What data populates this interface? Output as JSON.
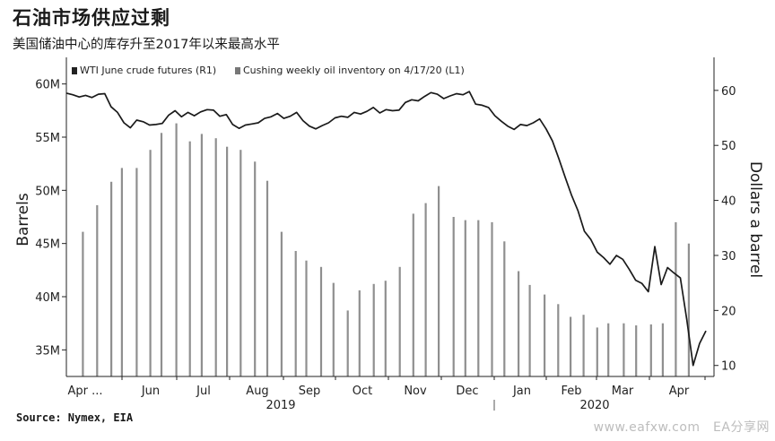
{
  "title": "石油市场供应过剩",
  "subtitle": "美国储油中心的库存升至2017年以来最高水平",
  "source": "Source: Nymex, EIA",
  "watermark": "www.eafxw.com　EA分享网",
  "colors": {
    "bars": "#8f8f8f",
    "line": "#1a1a1a",
    "legend_line": "#222222",
    "legend_bars": "#777777"
  },
  "chart_data": {
    "type": "bar+line",
    "legend": [
      {
        "label": "WTI June crude futures (R1)",
        "series": "wti"
      },
      {
        "label": "Cushing weekly oil inventory on 4/17/20 (L1)",
        "series": "cushing"
      }
    ],
    "legend_position": "top-left",
    "ylabel_left": "Barrels",
    "ylabel_right": "Dollars a barrel",
    "ylim_left": [
      32.5,
      62.5
    ],
    "ylim_right": [
      8,
      66
    ],
    "yticks_left": [
      35,
      40,
      45,
      50,
      55,
      60
    ],
    "yticks_left_labels": [
      "35M",
      "40M",
      "45M",
      "50M",
      "55M",
      "60M"
    ],
    "yticks_right": [
      10,
      20,
      30,
      40,
      50,
      60
    ],
    "yticks_right_labels": [
      "10",
      "20",
      "30",
      "40",
      "50",
      "60"
    ],
    "x_month_labels": [
      "Apr ...",
      "Jun",
      "Jul",
      "Aug",
      "Sep",
      "Oct",
      "Nov",
      "Dec",
      "Jan",
      "Feb",
      "Mar",
      "Apr"
    ],
    "x_year_labels": [
      "2019",
      "2020"
    ],
    "series": [
      {
        "name": "Cushing weekly oil inventory on 4/17/20 (L1)",
        "id": "cushing",
        "kind": "bar",
        "axis": "left",
        "x_fraction": [
          0.012,
          0.035,
          0.058,
          0.075,
          0.099,
          0.121,
          0.139,
          0.163,
          0.185,
          0.204,
          0.227,
          0.245,
          0.267,
          0.29,
          0.31,
          0.333,
          0.356,
          0.373,
          0.397,
          0.417,
          0.44,
          0.459,
          0.482,
          0.501,
          0.524,
          0.546,
          0.566,
          0.587,
          0.611,
          0.63,
          0.651,
          0.673,
          0.693,
          0.716,
          0.734,
          0.758,
          0.78,
          0.8,
          0.821,
          0.843,
          0.861,
          0.886,
          0.906,
          0.93,
          0.949,
          0.97,
          0.991
        ],
        "values": [
          46.1,
          48.6,
          50.8,
          52.1,
          52.1,
          53.8,
          55.4,
          56.3,
          54.6,
          55.3,
          54.9,
          54.1,
          53.8,
          52.7,
          50.9,
          46.1,
          44.3,
          43.4,
          42.8,
          41.3,
          38.7,
          40.6,
          41.2,
          41.5,
          42.8,
          47.8,
          48.8,
          50.4,
          47.5,
          47.2,
          47.2,
          47.0,
          45.2,
          42.4,
          41.1,
          40.2,
          39.3,
          38.1,
          38.3,
          37.1,
          37.5,
          37.5,
          37.3,
          37.4,
          37.5,
          47.0,
          45.0
        ]
      },
      {
        "name": "WTI June crude futures (R1)",
        "id": "wti",
        "kind": "line",
        "axis": "right",
        "x_fraction": [
          0,
          0.01,
          0.02,
          0.03,
          0.04,
          0.05,
          0.06,
          0.07,
          0.08,
          0.09,
          0.1,
          0.11,
          0.12,
          0.13,
          0.14,
          0.15,
          0.16,
          0.17,
          0.18,
          0.19,
          0.2,
          0.21,
          0.22,
          0.23,
          0.24,
          0.25,
          0.26,
          0.27,
          0.28,
          0.29,
          0.3,
          0.31,
          0.32,
          0.33,
          0.34,
          0.35,
          0.36,
          0.37,
          0.38,
          0.39,
          0.4,
          0.41,
          0.42,
          0.43,
          0.44,
          0.45,
          0.46,
          0.47,
          0.48,
          0.49,
          0.5,
          0.51,
          0.52,
          0.53,
          0.54,
          0.55,
          0.56,
          0.57,
          0.58,
          0.59,
          0.6,
          0.61,
          0.62,
          0.63,
          0.64,
          0.65,
          0.66,
          0.67,
          0.68,
          0.69,
          0.7,
          0.71,
          0.72,
          0.73,
          0.74,
          0.75,
          0.76,
          0.77,
          0.78,
          0.79,
          0.8,
          0.81,
          0.82,
          0.83,
          0.84,
          0.85,
          0.86,
          0.87,
          0.88,
          0.89,
          0.9,
          0.91,
          0.92,
          0.93,
          0.94,
          0.95,
          0.96,
          0.97,
          0.98,
          0.99,
          1.0
        ],
        "values": [
          59.5,
          59.2,
          58.8,
          59.1,
          58.7,
          59.3,
          59.4,
          57.0,
          56.0,
          54.1,
          53.2,
          54.6,
          54.3,
          53.7,
          53.8,
          54.0,
          55.5,
          56.3,
          55.2,
          56.0,
          55.4,
          56.1,
          56.5,
          56.4,
          55.3,
          55.6,
          53.8,
          53.1,
          53.7,
          53.9,
          54.1,
          54.9,
          55.2,
          55.8,
          54.9,
          55.3,
          56.0,
          54.5,
          53.5,
          53.0,
          53.6,
          54.1,
          55.0,
          55.3,
          55.1,
          56.0,
          55.7,
          56.2,
          56.9,
          55.9,
          56.5,
          56.3,
          56.4,
          57.8,
          58.3,
          58.1,
          58.9,
          59.6,
          59.3,
          58.5,
          59.0,
          59.4,
          59.2,
          59.8,
          57.5,
          57.3,
          56.9,
          55.4,
          54.4,
          53.5,
          52.9,
          53.8,
          53.6,
          54.1,
          54.8,
          53.0,
          50.8,
          47.6,
          44.2,
          40.9,
          38.1,
          34.4,
          32.9,
          30.6,
          29.6,
          28.4,
          30.0,
          29.3,
          27.5,
          25.5,
          24.9,
          23.4,
          31.6,
          24.7,
          27.8,
          26.8,
          25.9,
          18.4,
          10.0,
          14.0,
          16.3
        ]
      }
    ]
  }
}
